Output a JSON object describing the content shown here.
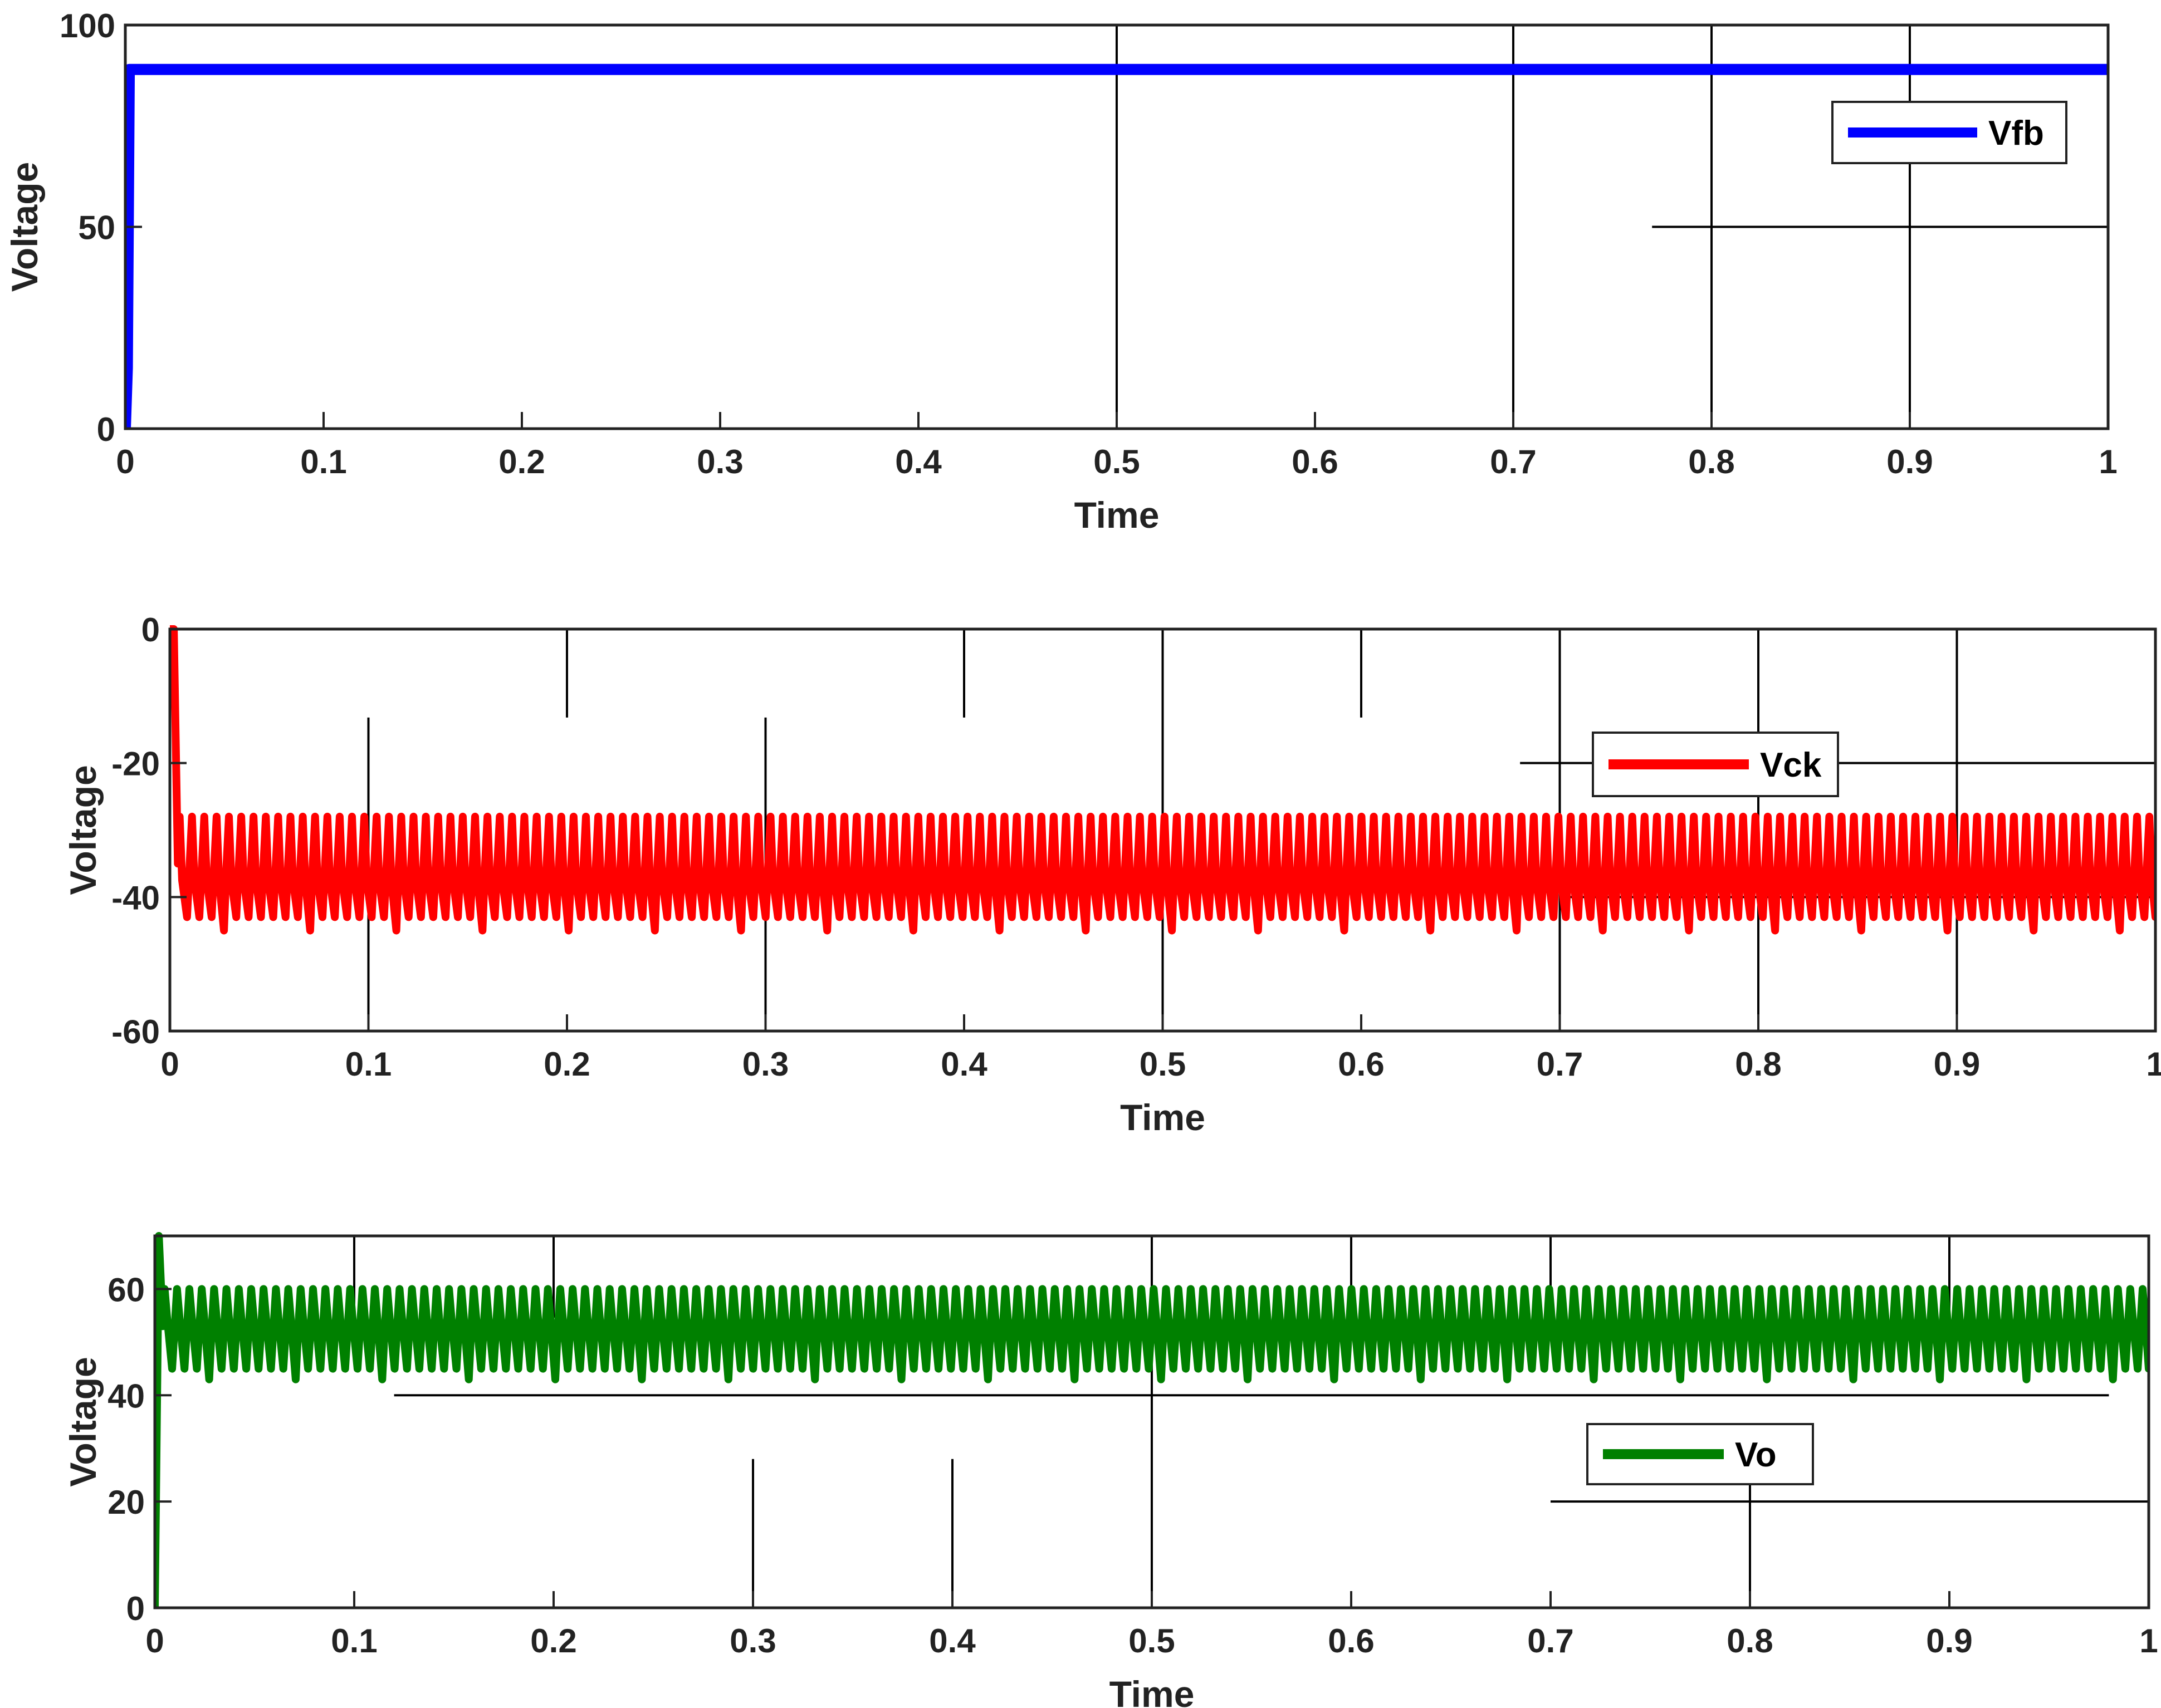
{
  "chart_data": [
    {
      "type": "line",
      "xlabel": "Time",
      "ylabel": "Voltage",
      "xlim": [
        0,
        1
      ],
      "ylim": [
        0,
        100
      ],
      "xticks": [
        "0",
        "0.1",
        "0.2",
        "0.3",
        "0.4",
        "0.5",
        "0.6",
        "0.7",
        "0.8",
        "0.9",
        "1"
      ],
      "yticks": [
        "0",
        "50",
        "100"
      ],
      "legend_position": "top-right",
      "grid": true,
      "series": [
        {
          "name": "Vfb",
          "color": "#0000ff",
          "description": "rises from 0 to about 89 at t≈0.002 and stays constant",
          "x": [
            0,
            0.001,
            0.002,
            1
          ],
          "y": [
            0,
            15,
            89,
            89
          ]
        }
      ]
    },
    {
      "type": "line",
      "xlabel": "Time",
      "ylabel": "Voltage",
      "xlim": [
        0,
        1
      ],
      "ylim": [
        -60,
        0
      ],
      "xticks": [
        "0",
        "0.1",
        "0.2",
        "0.3",
        "0.4",
        "0.5",
        "0.6",
        "0.7",
        "0.8",
        "0.9",
        "1"
      ],
      "yticks": [
        "-60",
        "-40",
        "-20",
        "0"
      ],
      "legend_position": "top-right",
      "grid": true,
      "series": [
        {
          "name": "Vck",
          "color": "#ff0000",
          "start": {
            "x": [
              0,
              0.002,
              0.004
            ],
            "y": [
              0,
              0,
              -35
            ]
          },
          "oscillation": {
            "period": 0.0062,
            "max": -28,
            "min": -45,
            "typical_min": -43
          }
        }
      ]
    },
    {
      "type": "line",
      "xlabel": "Time",
      "ylabel": "Voltage",
      "xlim": [
        0,
        1
      ],
      "ylim": [
        0,
        70
      ],
      "xticks": [
        "0",
        "0.1",
        "0.2",
        "0.3",
        "0.4",
        "0.5",
        "0.6",
        "0.7",
        "0.8",
        "0.9",
        "1"
      ],
      "yticks": [
        "0",
        "20",
        "40",
        "60"
      ],
      "legend_position": "center-right",
      "grid": true,
      "series": [
        {
          "name": "Vo",
          "color": "#008000",
          "start": {
            "x": [
              0,
              0.002,
              0.004
            ],
            "y": [
              0,
              70,
              53
            ]
          },
          "oscillation": {
            "period": 0.0062,
            "max": 60,
            "min": 43,
            "typical_min": 45
          }
        }
      ]
    }
  ]
}
